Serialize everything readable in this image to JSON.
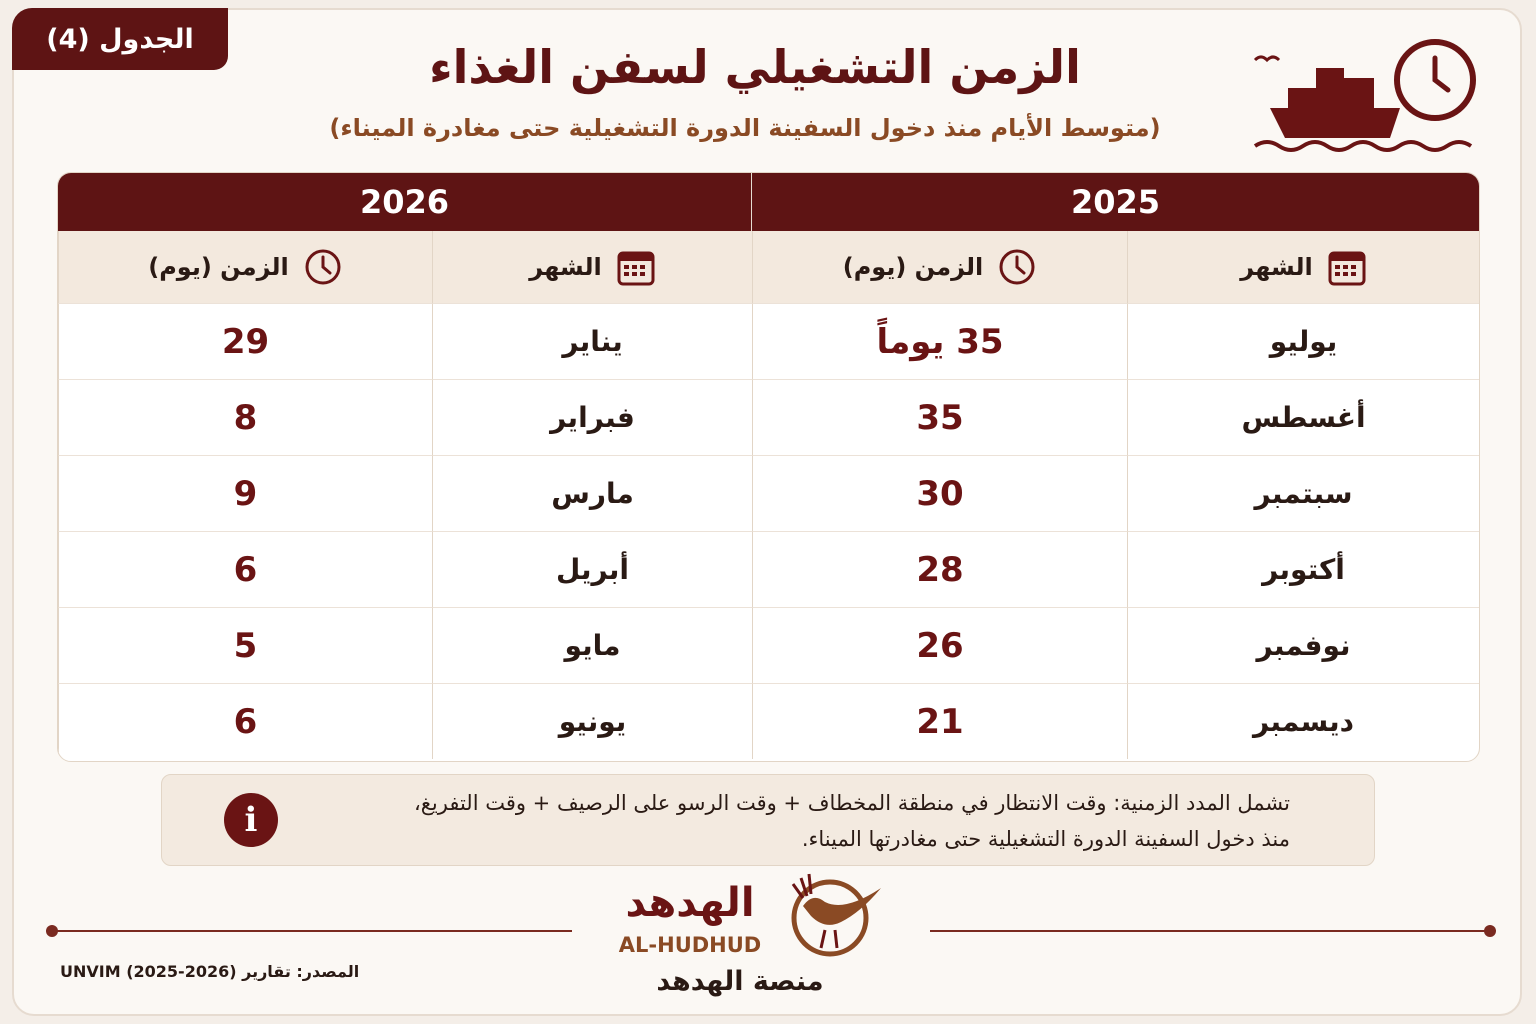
{
  "header": {
    "badge": "الجدول (4)",
    "title": "الزمن التشغيلي لسفن الغذاء",
    "subtitle": "(متوسط الأيام منذ دخول السفينة الدورة التشغيلية حتى مغادرة الميناء)"
  },
  "table": {
    "month_header": "الشهر",
    "time_header": "الزمن (يوم)",
    "years": [
      {
        "year": 2025,
        "rows": [
          {
            "month": "يوليو",
            "days": "35 يوماً"
          },
          {
            "month": "أغسطس",
            "days": 35
          },
          {
            "month": "سبتمبر",
            "days": 30
          },
          {
            "month": "أكتوبر",
            "days": 28
          },
          {
            "month": "نوفمبر",
            "days": 26
          },
          {
            "month": "ديسمبر",
            "days": 21
          }
        ]
      },
      {
        "year": 2026,
        "rows": [
          {
            "month": "يناير",
            "days": 29
          },
          {
            "month": "فبراير",
            "days": 8
          },
          {
            "month": "مارس",
            "days": 9
          },
          {
            "month": "أبريل",
            "days": 6
          },
          {
            "month": "مايو",
            "days": 5
          },
          {
            "month": "يونيو",
            "days": 6
          }
        ]
      }
    ]
  },
  "note": {
    "lines": [
      "تشمل المدد الزمنية: وقت الانتظار في منطقة المخطاف + وقت الرسو على الرصيف + وقت التفريغ،",
      "منذ دخول السفينة الدورة التشغيلية حتى مغادرتها الميناء."
    ]
  },
  "footer": {
    "logo_ar": "الهدهد",
    "logo_en": "AL-HUDHUD",
    "platform": "منصة الهدهد",
    "source": "المصدر: تقارير UNVIM (2025-2026)"
  }
}
